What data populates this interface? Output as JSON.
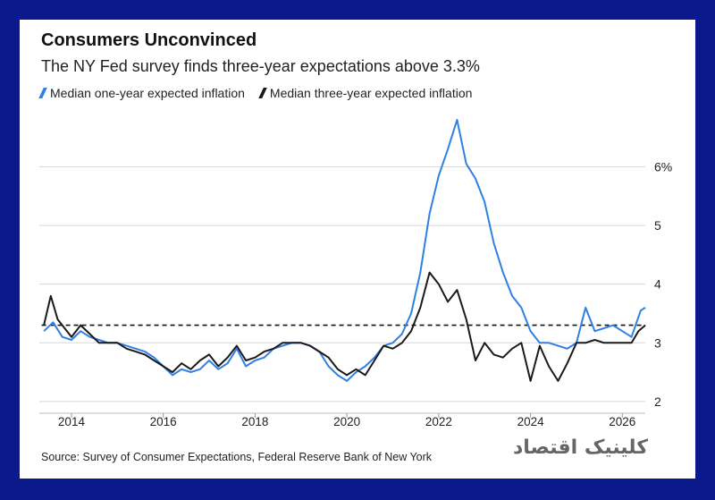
{
  "title": "Consumers Unconvinced",
  "subtitle": "The NY Fed survey finds three-year expectations above 3.3%",
  "source": "Source: Survey of Consumer Expectations, Federal Reserve Bank of New York",
  "watermark": "کلینیک اقتصاد",
  "colors": {
    "frame": "#0a1a8c",
    "one_year": "#2f7fe6",
    "three_year": "#1a1a1a",
    "grid": "#d8d8d8"
  },
  "chart_data": {
    "type": "line",
    "title": "Consumers Unconvinced",
    "subtitle": "The NY Fed survey finds three-year expectations above 3.3%",
    "xlabel": "",
    "ylabel": "",
    "xlim": [
      2013.3,
      2026.5
    ],
    "ylim": [
      1.8,
      6.8
    ],
    "x_ticks": [
      2014,
      2016,
      2018,
      2020,
      2022,
      2024,
      2026
    ],
    "x_tick_labels": [
      "2014",
      "2016",
      "2018",
      "2020",
      "2022",
      "2024",
      "2026"
    ],
    "y_ticks": [
      2,
      3,
      4,
      5,
      6
    ],
    "y_tick_labels": [
      "2",
      "3",
      "4",
      "5",
      "6%"
    ],
    "grid": true,
    "legend_position": "top-left",
    "reference_line": {
      "y": 3.3,
      "style": "dashed"
    },
    "series": [
      {
        "name": "Median one-year expected inflation",
        "color": "#2f7fe6",
        "points": [
          [
            2013.4,
            3.2
          ],
          [
            2013.6,
            3.35
          ],
          [
            2013.8,
            3.1
          ],
          [
            2014.0,
            3.05
          ],
          [
            2014.2,
            3.2
          ],
          [
            2014.4,
            3.1
          ],
          [
            2014.6,
            3.05
          ],
          [
            2014.8,
            3.0
          ],
          [
            2015.0,
            3.0
          ],
          [
            2015.2,
            2.95
          ],
          [
            2015.4,
            2.9
          ],
          [
            2015.6,
            2.85
          ],
          [
            2015.8,
            2.75
          ],
          [
            2016.0,
            2.6
          ],
          [
            2016.2,
            2.45
          ],
          [
            2016.4,
            2.55
          ],
          [
            2016.6,
            2.5
          ],
          [
            2016.8,
            2.55
          ],
          [
            2017.0,
            2.7
          ],
          [
            2017.2,
            2.55
          ],
          [
            2017.4,
            2.65
          ],
          [
            2017.6,
            2.9
          ],
          [
            2017.8,
            2.6
          ],
          [
            2018.0,
            2.7
          ],
          [
            2018.2,
            2.75
          ],
          [
            2018.4,
            2.9
          ],
          [
            2018.6,
            2.95
          ],
          [
            2018.8,
            3.0
          ],
          [
            2019.0,
            3.0
          ],
          [
            2019.2,
            2.95
          ],
          [
            2019.4,
            2.85
          ],
          [
            2019.6,
            2.6
          ],
          [
            2019.8,
            2.45
          ],
          [
            2020.0,
            2.35
          ],
          [
            2020.2,
            2.5
          ],
          [
            2020.4,
            2.6
          ],
          [
            2020.6,
            2.75
          ],
          [
            2020.8,
            2.95
          ],
          [
            2021.0,
            3.0
          ],
          [
            2021.2,
            3.15
          ],
          [
            2021.4,
            3.5
          ],
          [
            2021.6,
            4.2
          ],
          [
            2021.8,
            5.2
          ],
          [
            2022.0,
            5.85
          ],
          [
            2022.2,
            6.3
          ],
          [
            2022.4,
            6.8
          ],
          [
            2022.6,
            6.05
          ],
          [
            2022.8,
            5.8
          ],
          [
            2023.0,
            5.4
          ],
          [
            2023.2,
            4.7
          ],
          [
            2023.4,
            4.2
          ],
          [
            2023.6,
            3.8
          ],
          [
            2023.8,
            3.6
          ],
          [
            2024.0,
            3.2
          ],
          [
            2024.2,
            3.0
          ],
          [
            2024.4,
            3.0
          ],
          [
            2024.6,
            2.95
          ],
          [
            2024.8,
            2.9
          ],
          [
            2025.0,
            3.0
          ],
          [
            2025.2,
            3.6
          ],
          [
            2025.4,
            3.2
          ],
          [
            2025.6,
            3.25
          ],
          [
            2025.8,
            3.3
          ],
          [
            2026.0,
            3.2
          ],
          [
            2026.2,
            3.1
          ],
          [
            2026.4,
            3.55
          ],
          [
            2026.5,
            3.6
          ]
        ]
      },
      {
        "name": "Median three-year expected inflation",
        "color": "#1a1a1a",
        "points": [
          [
            2013.4,
            3.3
          ],
          [
            2013.55,
            3.8
          ],
          [
            2013.7,
            3.4
          ],
          [
            2014.0,
            3.1
          ],
          [
            2014.2,
            3.3
          ],
          [
            2014.4,
            3.15
          ],
          [
            2014.6,
            3.0
          ],
          [
            2014.8,
            3.0
          ],
          [
            2015.0,
            3.0
          ],
          [
            2015.2,
            2.9
          ],
          [
            2015.4,
            2.85
          ],
          [
            2015.6,
            2.8
          ],
          [
            2015.8,
            2.7
          ],
          [
            2016.0,
            2.6
          ],
          [
            2016.2,
            2.5
          ],
          [
            2016.4,
            2.65
          ],
          [
            2016.6,
            2.55
          ],
          [
            2016.8,
            2.7
          ],
          [
            2017.0,
            2.8
          ],
          [
            2017.2,
            2.6
          ],
          [
            2017.4,
            2.75
          ],
          [
            2017.6,
            2.95
          ],
          [
            2017.8,
            2.7
          ],
          [
            2018.0,
            2.75
          ],
          [
            2018.2,
            2.85
          ],
          [
            2018.4,
            2.9
          ],
          [
            2018.6,
            3.0
          ],
          [
            2018.8,
            3.0
          ],
          [
            2019.0,
            3.0
          ],
          [
            2019.2,
            2.95
          ],
          [
            2019.4,
            2.85
          ],
          [
            2019.6,
            2.75
          ],
          [
            2019.8,
            2.55
          ],
          [
            2020.0,
            2.45
          ],
          [
            2020.2,
            2.55
          ],
          [
            2020.4,
            2.45
          ],
          [
            2020.6,
            2.7
          ],
          [
            2020.8,
            2.95
          ],
          [
            2021.0,
            2.9
          ],
          [
            2021.2,
            3.0
          ],
          [
            2021.4,
            3.2
          ],
          [
            2021.6,
            3.6
          ],
          [
            2021.8,
            4.2
          ],
          [
            2022.0,
            4.0
          ],
          [
            2022.2,
            3.7
          ],
          [
            2022.4,
            3.9
          ],
          [
            2022.6,
            3.4
          ],
          [
            2022.8,
            2.7
          ],
          [
            2023.0,
            3.0
          ],
          [
            2023.2,
            2.8
          ],
          [
            2023.4,
            2.75
          ],
          [
            2023.6,
            2.9
          ],
          [
            2023.8,
            3.0
          ],
          [
            2024.0,
            2.35
          ],
          [
            2024.2,
            2.95
          ],
          [
            2024.4,
            2.6
          ],
          [
            2024.6,
            2.35
          ],
          [
            2024.8,
            2.65
          ],
          [
            2025.0,
            3.0
          ],
          [
            2025.2,
            3.0
          ],
          [
            2025.4,
            3.05
          ],
          [
            2025.6,
            3.0
          ],
          [
            2025.8,
            3.0
          ],
          [
            2026.0,
            3.0
          ],
          [
            2026.2,
            3.0
          ],
          [
            2026.35,
            3.2
          ],
          [
            2026.5,
            3.3
          ]
        ]
      }
    ]
  }
}
